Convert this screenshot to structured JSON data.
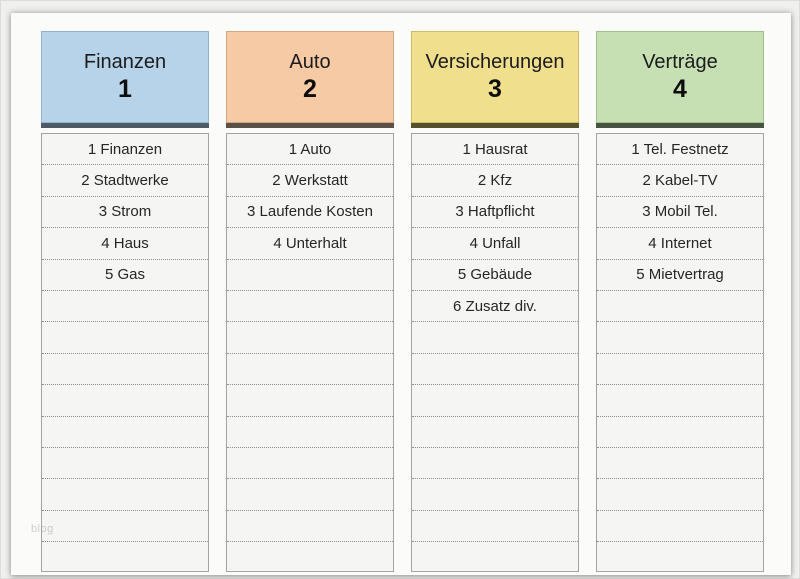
{
  "document": {
    "kind": "binder-spine-label-template",
    "watermark": "blog"
  },
  "columns": [
    {
      "title": "Finanzen",
      "number": "1",
      "items": [
        "1 Finanzen",
        "2 Stadtwerke",
        "3 Strom",
        "4 Haus",
        "5 Gas"
      ],
      "empty_rows": 9,
      "colors": {
        "header_bg": "#b7d3e9",
        "header_border": "#93b3cd",
        "underline": "#4e5a66"
      }
    },
    {
      "title": "Auto",
      "number": "2",
      "items": [
        "1 Auto",
        "2 Werkstatt",
        "3 Laufende Kosten",
        "4 Unterhalt"
      ],
      "empty_rows": 10,
      "colors": {
        "header_bg": "#f6caa4",
        "header_border": "#d4a77e",
        "underline": "#5a5048"
      }
    },
    {
      "title": "Versicherungen",
      "number": "3",
      "items": [
        "1 Hausrat",
        "2 Kfz",
        "3 Haftpflicht",
        "4 Unfall",
        "5 Gebäude",
        "6 Zusatz div."
      ],
      "empty_rows": 8,
      "colors": {
        "header_bg": "#f0df8d",
        "header_border": "#cdbd67",
        "underline": "#52522e"
      }
    },
    {
      "title": "Verträge",
      "number": "4",
      "items": [
        "1 Tel. Festnetz",
        "2 Kabel-TV",
        "3 Mobil Tel.",
        "4 Internet",
        "5 Mietvertrag"
      ],
      "empty_rows": 9,
      "colors": {
        "header_bg": "#c6e0b4",
        "header_border": "#a0c289",
        "underline": "#475243"
      }
    }
  ]
}
